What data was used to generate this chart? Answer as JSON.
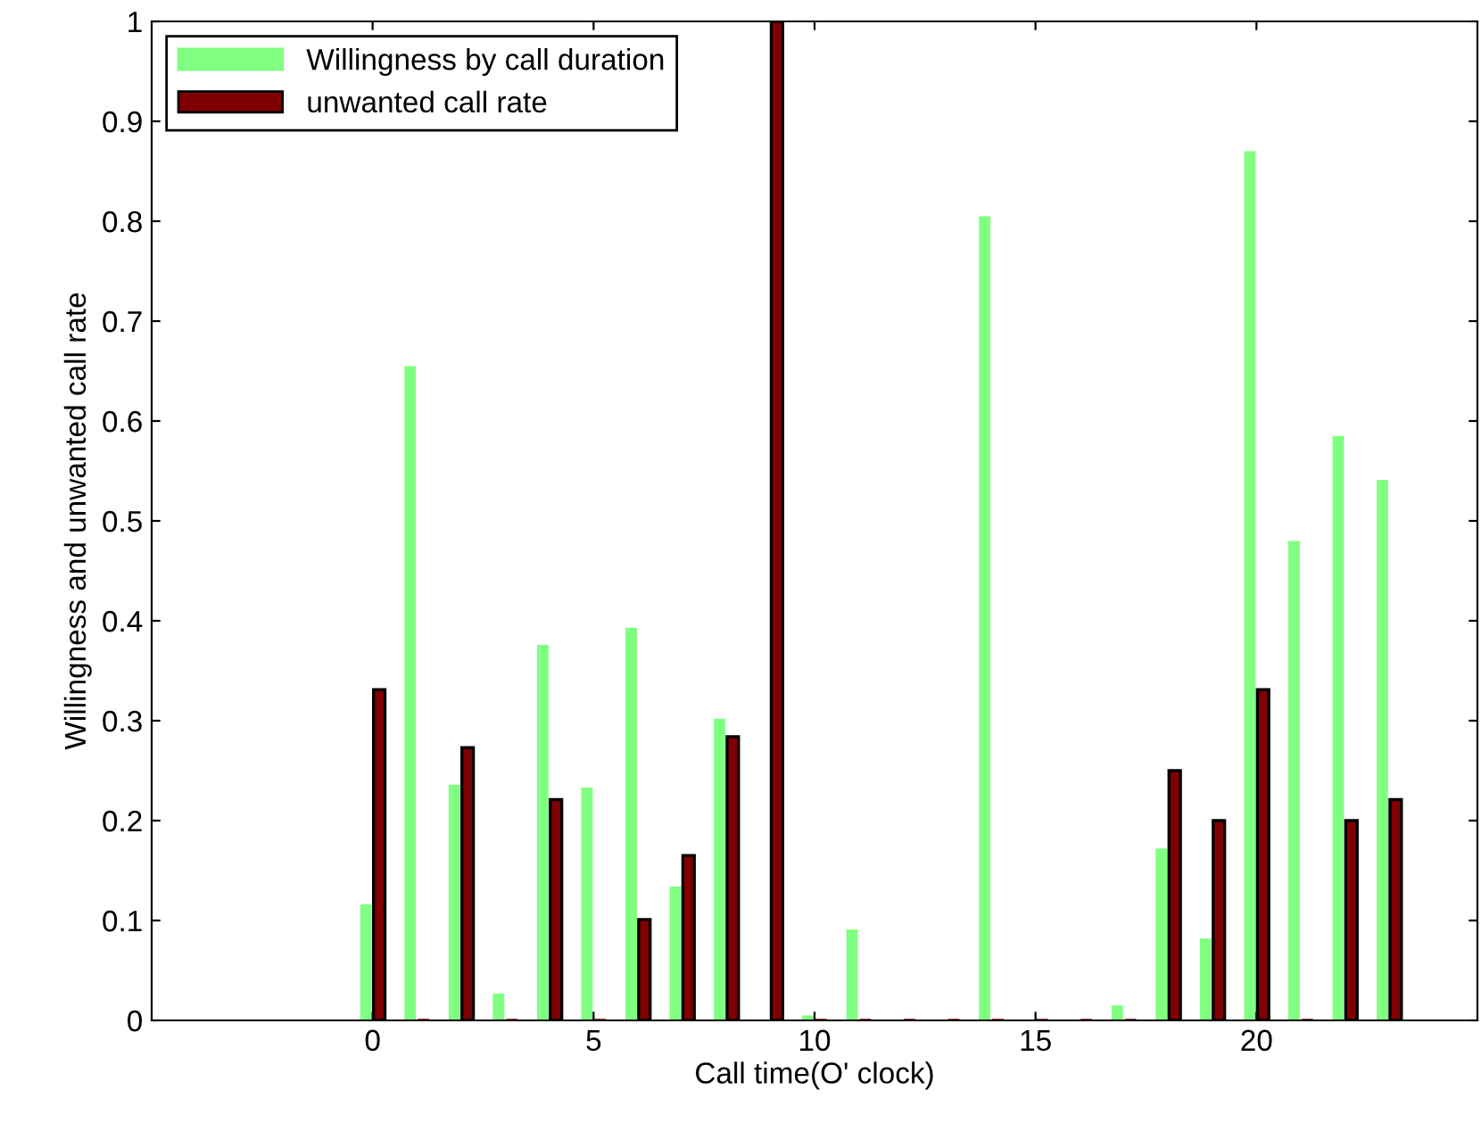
{
  "chart_data": {
    "type": "bar",
    "xlabel": "Call time(O' clock)",
    "ylabel": "Willingness and unwanted call rate",
    "x": [
      0,
      1,
      2,
      3,
      4,
      5,
      6,
      7,
      8,
      9,
      10,
      11,
      12,
      13,
      14,
      15,
      16,
      17,
      18,
      19,
      20,
      21,
      22,
      23
    ],
    "series": [
      {
        "name": "Willingness by call duration",
        "color": "#80ff80",
        "values": [
          0.116,
          0.655,
          0.236,
          0.027,
          0.376,
          0.233,
          0.393,
          0.134,
          0.302,
          0,
          0.005,
          0.091,
          0,
          0,
          0.805,
          0,
          0,
          0.015,
          0.172,
          0.082,
          0.87,
          0.48,
          0.585,
          0.541
        ]
      },
      {
        "name": "unwanted call rate",
        "color": "#800000",
        "values": [
          0.331,
          0,
          0.273,
          0,
          0.221,
          0,
          0.101,
          0.165,
          0.284,
          1,
          0,
          0,
          0,
          0,
          0,
          0,
          0,
          0,
          0.25,
          0.2,
          0.331,
          0,
          0.2,
          0.221
        ]
      }
    ],
    "xlim": [
      -5,
      25
    ],
    "xticks": [
      0,
      5,
      10,
      15,
      20
    ],
    "ylim": [
      0,
      1
    ],
    "yticks": [
      0,
      {
        "value": 0.1,
        "label": "0.1"
      },
      {
        "value": 0.2,
        "label": "0.2"
      },
      {
        "value": 0.3,
        "label": "0.3"
      },
      {
        "value": 0.4,
        "label": "0.4"
      },
      {
        "value": 0.5,
        "label": "0.5"
      },
      {
        "value": 0.6,
        "label": "0.6"
      },
      {
        "value": 0.7,
        "label": "0.7"
      },
      {
        "value": 0.8,
        "label": "0.8"
      },
      {
        "value": 0.9,
        "label": "0.9"
      },
      1
    ],
    "grid": false,
    "legend": "top left"
  }
}
